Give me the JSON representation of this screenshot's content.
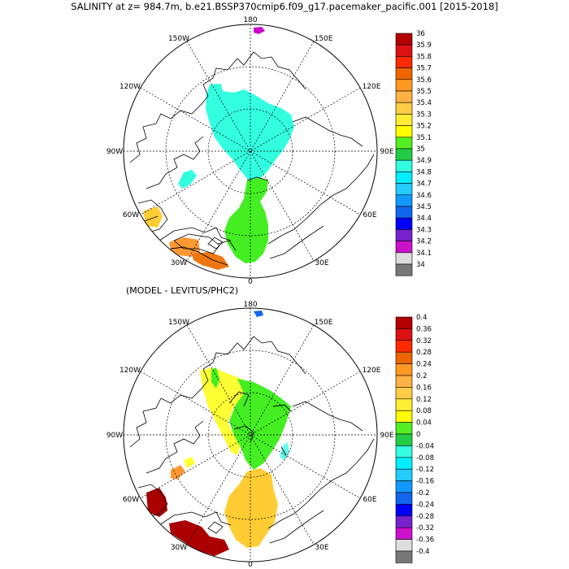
{
  "title": "SALINITY at z= 984.7m, b.e21.BSSP370cmip6.f09_g17.pacemaker_pacific.001 [2015-2018]",
  "panel2_title": "(MODEL - LEVITUS/PHC2)",
  "lon_labels": {
    "top": "180",
    "ul": "150W",
    "ur": "150E",
    "l1": "120W",
    "r1": "120E",
    "l2": "90W",
    "r2": "90E",
    "l3": "60W",
    "r3": "60E",
    "bl": "30W",
    "br": "30E",
    "bottom": "0"
  },
  "colors": {
    "cyan": "#33ffe0",
    "green": "#44ee22",
    "yellow": "#ffff33",
    "gold": "#ffcc33",
    "orange": "#ff9933",
    "darkorange": "#ee7711",
    "darkred": "#aa0000",
    "lightcyan": "#66ffee",
    "blue": "#1166ee",
    "magenta": "#cc00cc"
  },
  "legend1": {
    "labels": [
      "36",
      "35.9",
      "35.8",
      "35.7",
      "35.6",
      "35.5",
      "35.4",
      "35.3",
      "35.2",
      "35.1",
      "35",
      "34.9",
      "34.8",
      "34.7",
      "34.6",
      "34.5",
      "34.4",
      "34.3",
      "34.2",
      "34.1",
      "34"
    ],
    "colors": [
      "#b40000",
      "#dd1111",
      "#ff2a00",
      "#ee6600",
      "#ff9922",
      "#ffb144",
      "#ffcc44",
      "#ffee33",
      "#ffff00",
      "#55ee22",
      "#22cc44",
      "#33ffe0",
      "#00eeff",
      "#22ccff",
      "#1199ff",
      "#1166ee",
      "#0000ff",
      "#7722cc",
      "#cc11cc",
      "#dddddd",
      "#777777"
    ]
  },
  "legend2": {
    "labels": [
      "0.4",
      "0.36",
      "0.32",
      "0.28",
      "0.24",
      "0.2",
      "0.16",
      "0.12",
      "0.08",
      "0.04",
      "0",
      "-0.04",
      "-0.08",
      "-0.12",
      "-0.16",
      "-0.2",
      "-0.24",
      "-0.28",
      "-0.32",
      "-0.36",
      "-0.4"
    ],
    "colors": [
      "#b40000",
      "#dd1111",
      "#ff2a00",
      "#ee6600",
      "#ff9922",
      "#ffb144",
      "#ffcc44",
      "#ffee33",
      "#ffff00",
      "#55ee22",
      "#22cc44",
      "#33ffe0",
      "#00eeff",
      "#22ccff",
      "#1199ff",
      "#1166ee",
      "#0000ff",
      "#7722cc",
      "#cc11cc",
      "#dddddd",
      "#777777"
    ]
  }
}
